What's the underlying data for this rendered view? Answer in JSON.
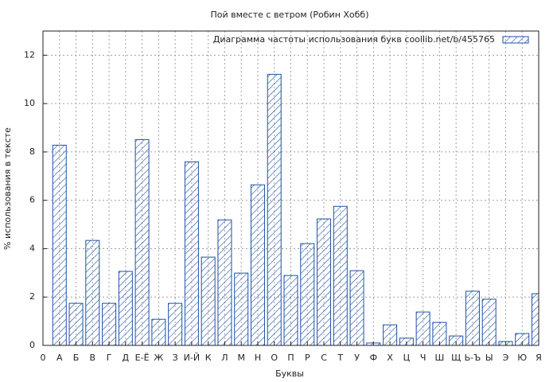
{
  "chart_data": {
    "type": "bar",
    "title": "Пой вместе с ветром (Робин Хобб)",
    "xlabel": "Буквы",
    "ylabel": "% использования в тексте",
    "x": [
      1,
      2,
      3,
      4,
      5,
      6,
      7,
      8,
      9,
      10,
      11,
      12,
      13,
      14,
      15,
      16,
      17,
      18,
      19,
      20,
      21,
      22,
      23,
      24,
      25,
      26,
      27,
      28,
      29,
      30
    ],
    "categories": [
      "А",
      "Б",
      "В",
      "Г",
      "Д",
      "Е-Ё",
      "Ж",
      "З",
      "И-Й",
      "К",
      "Л",
      "М",
      "Н",
      "О",
      "П",
      "Р",
      "С",
      "Т",
      "У",
      "Ф",
      "Х",
      "Ц",
      "Ч",
      "Ш",
      "Щ",
      "Ь-Ъ",
      "Ы",
      "Э",
      "Ю",
      "Я"
    ],
    "series": [
      {
        "name": "Диаграмма частоты использования букв  coollib.net/b/455765",
        "color": "#1f50a8",
        "values": [
          8.28,
          1.74,
          4.34,
          1.74,
          3.06,
          8.51,
          1.08,
          1.74,
          7.59,
          3.65,
          5.19,
          2.99,
          6.64,
          11.21,
          2.89,
          4.21,
          5.23,
          5.75,
          3.09,
          0.1,
          0.85,
          0.3,
          1.38,
          0.95,
          0.39,
          2.24,
          1.91,
          0.16,
          0.49,
          2.14
        ]
      }
    ],
    "xlim": [
      0,
      30
    ],
    "xticks": [
      0
    ],
    "ylim": [
      0,
      13
    ],
    "yticks": [
      0,
      2,
      4,
      6,
      8,
      10,
      12
    ],
    "grid": true,
    "legend": "upper right"
  }
}
